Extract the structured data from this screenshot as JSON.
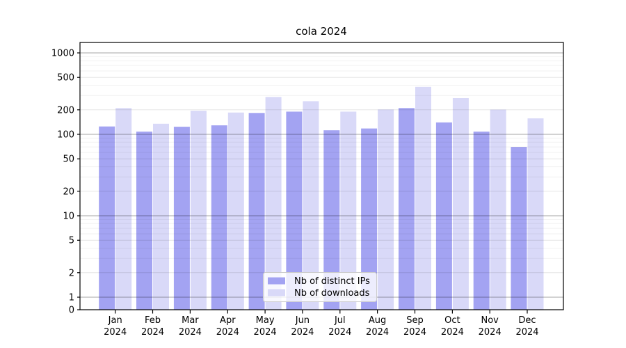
{
  "title": "cola 2024",
  "chart_data": {
    "type": "bar",
    "title": "cola 2024",
    "xlabel": "",
    "ylabel": "",
    "yscale": "symlog",
    "grid": true,
    "legend_position": "lower center",
    "ylim": [
      0,
      1340
    ],
    "yticks": [
      0,
      1,
      2,
      5,
      10,
      20,
      50,
      100,
      200,
      500,
      1000
    ],
    "categories": [
      "Jan 2024",
      "Feb 2024",
      "Mar 2024",
      "Apr 2024",
      "May 2024",
      "Jun 2024",
      "Jul 2024",
      "Aug 2024",
      "Sep 2024",
      "Oct 2024",
      "Nov 2024",
      "Dec 2024"
    ],
    "series": [
      {
        "name": "Nb of distinct IPs",
        "color": "#a3a3f2",
        "values": [
          125,
          108,
          124,
          129,
          183,
          190,
          112,
          118,
          210,
          140,
          108,
          70
        ]
      },
      {
        "name": "Nb of downloads",
        "color": "#d9d9f8",
        "values": [
          210,
          135,
          195,
          185,
          288,
          255,
          190,
          202,
          383,
          278,
          201,
          157
        ]
      }
    ]
  },
  "colors": {
    "grid_major": "rgba(0,0,0,0.35)",
    "grid_mid": "rgba(0,0,0,0.10)",
    "grid_minor": "rgba(0,0,0,0.055)",
    "spine": "#000000",
    "legend_border": "#cccccc"
  }
}
